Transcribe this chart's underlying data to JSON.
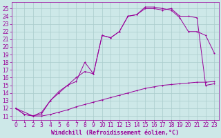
{
  "background_color": "#cde8e8",
  "line_color": "#990099",
  "grid_color": "#aacccc",
  "xlabel": "Windchill (Refroidissement éolien,°C)",
  "xlabel_fontsize": 6,
  "ytick_fontsize": 5.5,
  "xtick_fontsize": 5.5,
  "ylim": [
    10.5,
    25.8
  ],
  "xlim": [
    -0.5,
    23.5
  ],
  "yticks": [
    11,
    12,
    13,
    14,
    15,
    16,
    17,
    18,
    19,
    20,
    21,
    22,
    23,
    24,
    25
  ],
  "xticks": [
    0,
    1,
    2,
    3,
    4,
    5,
    6,
    7,
    8,
    9,
    10,
    11,
    12,
    13,
    14,
    15,
    16,
    17,
    18,
    19,
    20,
    21,
    22,
    23
  ],
  "curve1_x": [
    0,
    1,
    2,
    3,
    4,
    5,
    6,
    7,
    8,
    9,
    10,
    11,
    12,
    13,
    14,
    15,
    16,
    17,
    18,
    19,
    20,
    21,
    22,
    23
  ],
  "curve1_y": [
    12.0,
    11.2,
    11.0,
    11.0,
    11.2,
    11.5,
    11.8,
    12.2,
    12.5,
    12.8,
    13.1,
    13.4,
    13.7,
    14.0,
    14.3,
    14.6,
    14.8,
    15.0,
    15.1,
    15.2,
    15.3,
    15.4,
    15.4,
    15.5
  ],
  "curve2_x": [
    0,
    1,
    2,
    3,
    4,
    5,
    6,
    7,
    8,
    9,
    10,
    11,
    12,
    13,
    14,
    15,
    16,
    17,
    18,
    19,
    20,
    21,
    22,
    23
  ],
  "curve2_y": [
    12.0,
    11.2,
    11.0,
    11.3,
    13.0,
    14.2,
    15.0,
    16.0,
    16.8,
    16.5,
    21.5,
    21.2,
    22.0,
    24.0,
    24.2,
    25.2,
    25.2,
    25.0,
    24.8,
    23.8,
    22.0,
    22.0,
    21.5,
    19.2
  ],
  "curve3_x": [
    0,
    2,
    3,
    4,
    5,
    6,
    7,
    8,
    9,
    10,
    11,
    12,
    13,
    14,
    15,
    16,
    17,
    18,
    19,
    20,
    21,
    22,
    23
  ],
  "curve3_y": [
    12.0,
    11.0,
    11.5,
    13.0,
    14.0,
    15.0,
    15.5,
    18.0,
    16.5,
    21.5,
    21.2,
    22.0,
    24.0,
    24.2,
    25.0,
    25.0,
    24.8,
    25.0,
    24.0,
    24.0,
    23.8,
    15.0,
    15.2
  ]
}
